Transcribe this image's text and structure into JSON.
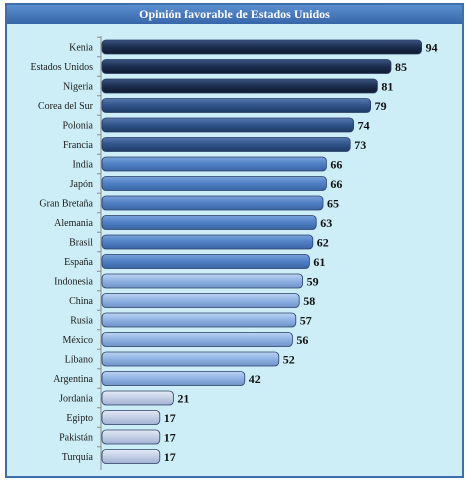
{
  "chart_data": {
    "type": "bar",
    "orientation": "horizontal",
    "title": "Opinión favorable de Estados Unidos",
    "categories": [
      "Kenia",
      "Estados Unidos",
      "Nigeria",
      "Corea del Sur",
      "Polonia",
      "Francia",
      "India",
      "Japón",
      "Gran Bretaña",
      "Alemania",
      "Brasil",
      "España",
      "Indonesia",
      "China",
      "Rusia",
      "México",
      "Líbano",
      "Argentina",
      "Jordania",
      "Egipto",
      "Pakistán",
      "Turquía"
    ],
    "values": [
      94,
      85,
      81,
      79,
      74,
      73,
      66,
      66,
      65,
      63,
      62,
      61,
      59,
      58,
      57,
      56,
      52,
      42,
      21,
      17,
      17,
      17
    ],
    "xlim": [
      0,
      100
    ],
    "grid": false,
    "highlight": {
      "category": "México",
      "color": "#cc2222"
    },
    "colors": {
      "dark": "#1c2d4e",
      "mid_dark": "#2f5389",
      "mid": "#4f7fc4",
      "light": "#8fb2e3",
      "pale": "#c3cfe6",
      "background": "#cdeef6",
      "title_bar": "#3f6fab"
    }
  }
}
